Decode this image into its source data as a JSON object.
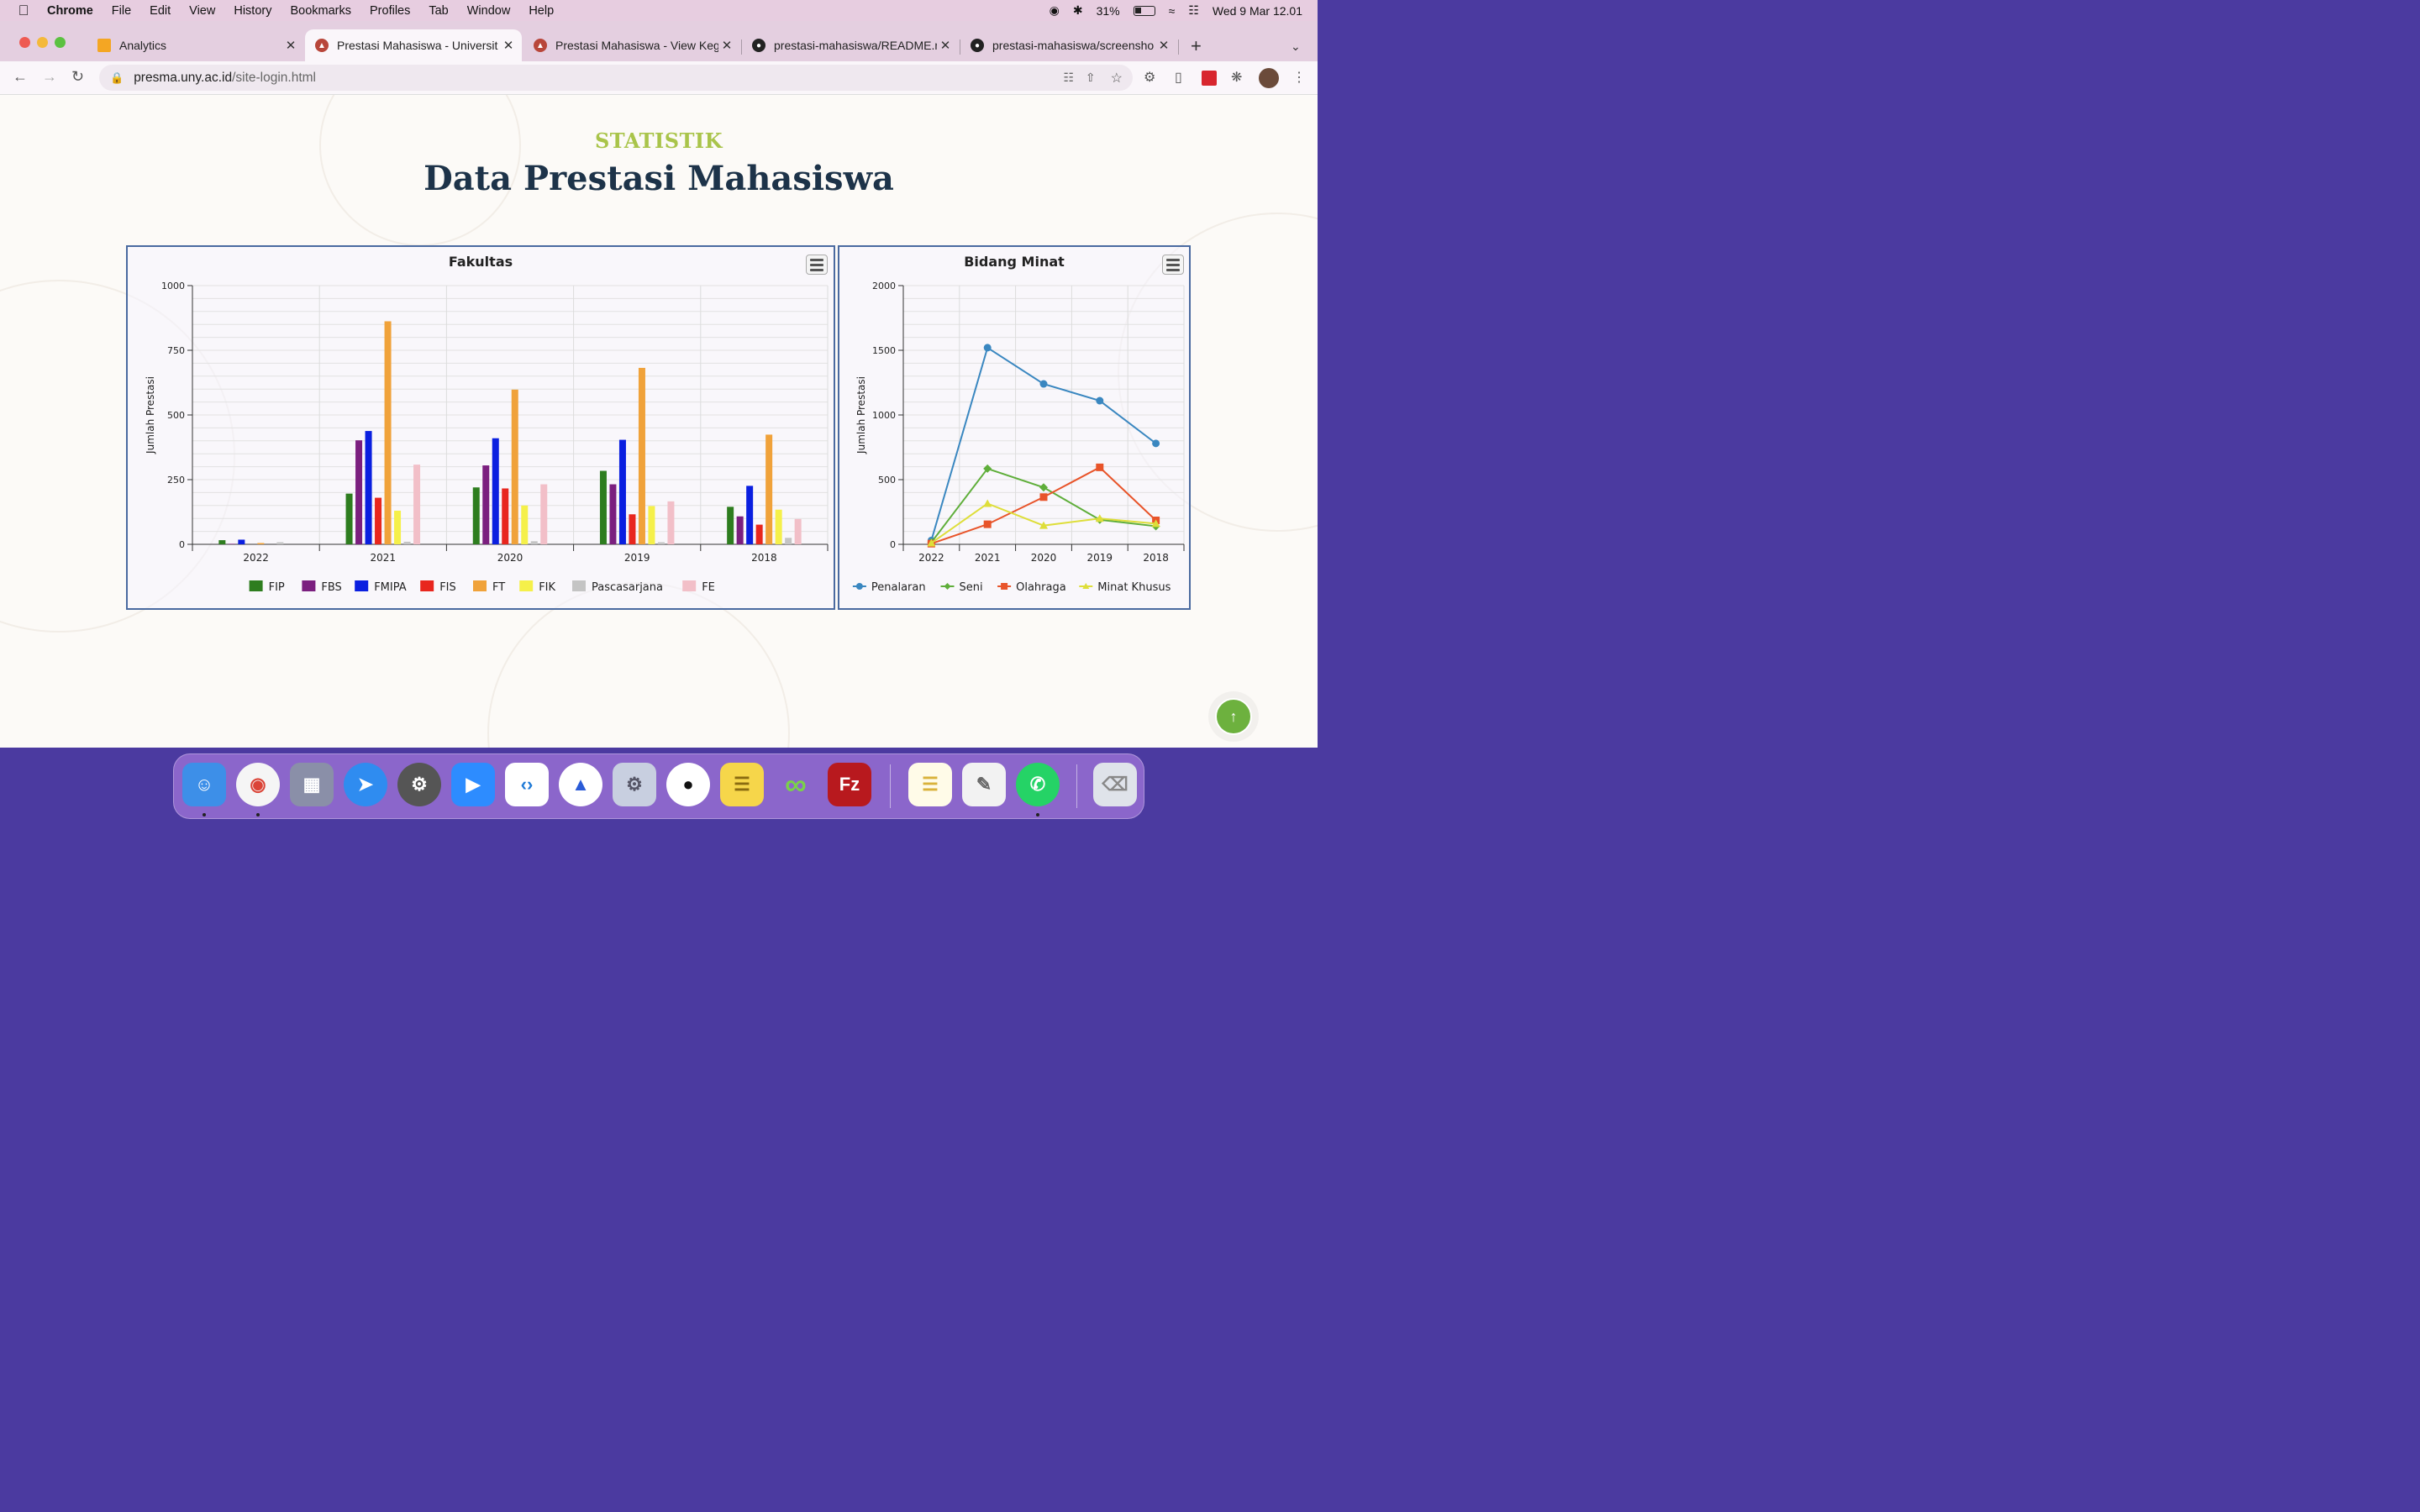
{
  "menubar": {
    "app": "Chrome",
    "items": [
      "File",
      "Edit",
      "View",
      "History",
      "Bookmarks",
      "Profiles",
      "Tab",
      "Window",
      "Help"
    ],
    "battery": "31%",
    "datetime": "Wed 9 Mar  12.01"
  },
  "tabs": [
    {
      "title": "Analytics",
      "active": false
    },
    {
      "title": "Prestasi Mahasiswa - Universit",
      "active": true
    },
    {
      "title": "Prestasi Mahasiswa - View Keg",
      "active": false
    },
    {
      "title": "prestasi-mahasiswa/README.m",
      "active": false
    },
    {
      "title": "prestasi-mahasiswa/screensho",
      "active": false
    }
  ],
  "address": {
    "host": "presma.uny.ac.id",
    "path": "/site-login.html"
  },
  "page": {
    "kicker": "STATISTIK",
    "heading": "Data Prestasi Mahasiswa"
  },
  "chart_data": [
    {
      "type": "bar",
      "title": "Fakultas",
      "ylabel": "Jumlah Prestasi",
      "xlabel": "",
      "ylim": [
        0,
        1000
      ],
      "yticks": [
        0,
        250,
        500,
        750,
        1000
      ],
      "categories": [
        "2022",
        "2021",
        "2020",
        "2019",
        "2018"
      ],
      "legend": "bottom",
      "series": [
        {
          "name": "FIP",
          "color": "#2e7d1f",
          "values": [
            16,
            196,
            220,
            284,
            145
          ]
        },
        {
          "name": "FBS",
          "color": "#7b1f7f",
          "values": [
            2,
            402,
            305,
            232,
            108
          ]
        },
        {
          "name": "FMIPA",
          "color": "#0a1fe0",
          "values": [
            18,
            438,
            410,
            404,
            226
          ]
        },
        {
          "name": "FIS",
          "color": "#e8261e",
          "values": [
            0,
            180,
            216,
            116,
            76
          ]
        },
        {
          "name": "FT",
          "color": "#f0a23a",
          "values": [
            5,
            862,
            598,
            682,
            424
          ]
        },
        {
          "name": "FIK",
          "color": "#f5f04a",
          "values": [
            0,
            130,
            150,
            148,
            134
          ]
        },
        {
          "name": "Pascasarjana",
          "color": "#c4c4c4",
          "values": [
            8,
            10,
            12,
            8,
            25
          ]
        },
        {
          "name": "FE",
          "color": "#f2bfc8",
          "values": [
            0,
            308,
            232,
            166,
            98
          ]
        }
      ]
    },
    {
      "type": "line",
      "title": "Bidang Minat",
      "ylabel": "Jumlah Prestasi",
      "xlabel": "",
      "ylim": [
        0,
        2000
      ],
      "yticks": [
        0,
        500,
        1000,
        1500,
        2000
      ],
      "categories": [
        "2022",
        "2021",
        "2020",
        "2019",
        "2018"
      ],
      "legend": "bottom",
      "series": [
        {
          "name": "Penalaran",
          "color": "#3a87c0",
          "marker": "circle",
          "values": [
            30,
            1520,
            1240,
            1110,
            780
          ]
        },
        {
          "name": "Seni",
          "color": "#5fae3a",
          "marker": "diamond",
          "values": [
            15,
            585,
            440,
            190,
            140
          ]
        },
        {
          "name": "Olahraga",
          "color": "#e8542a",
          "marker": "square",
          "values": [
            5,
            155,
            365,
            595,
            185
          ]
        },
        {
          "name": "Minat Khusus",
          "color": "#dede3a",
          "marker": "triangle",
          "values": [
            10,
            315,
            145,
            200,
            160
          ]
        }
      ]
    }
  ]
}
